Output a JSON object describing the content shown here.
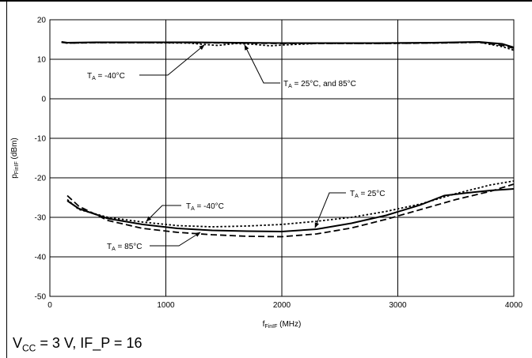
{
  "chart_data": {
    "type": "line",
    "xlabel": "f",
    "xlabel_sub": "FinIF",
    "xlabel_unit": " (MHz)",
    "ylabel": "p",
    "ylabel_sub": "FinIF",
    "ylabel_unit": " (dBm)",
    "xlim": [
      0,
      4000
    ],
    "ylim": [
      -50,
      20
    ],
    "grid": true,
    "x_ticks": [
      0,
      1000,
      2000,
      3000,
      4000
    ],
    "y_ticks": [
      20,
      10,
      0,
      -10,
      -20,
      -30,
      -40,
      -50
    ],
    "series": [
      {
        "condition": "-40°C",
        "group": "upper",
        "style": "dotted",
        "x": [
          100,
          150,
          400,
          800,
          1200,
          1350,
          1450,
          1600,
          1750,
          1900,
          2000,
          2300,
          2800,
          3300,
          3700,
          3900,
          4000
        ],
        "y": [
          14.3,
          14.1,
          14.2,
          14.2,
          14.1,
          13.7,
          13.5,
          14.0,
          13.8,
          13.4,
          13.6,
          14.0,
          14.0,
          14.1,
          14.3,
          13.2,
          12.3
        ]
      },
      {
        "condition": "25°C",
        "group": "upper",
        "style": "solid",
        "x": [
          100,
          150,
          400,
          800,
          1200,
          1600,
          2000,
          2300,
          2800,
          3300,
          3700,
          3900,
          4000
        ],
        "y": [
          14.4,
          14.2,
          14.3,
          14.3,
          14.3,
          14.2,
          14.1,
          14.1,
          14.1,
          14.2,
          14.4,
          13.9,
          13.0
        ]
      },
      {
        "condition": "85°C",
        "group": "upper",
        "style": "dashed",
        "x": [
          100,
          150,
          400,
          800,
          1200,
          1600,
          2000,
          2300,
          2800,
          3300,
          3700,
          3900,
          4000
        ],
        "y": [
          14.3,
          14.1,
          14.2,
          14.2,
          14.2,
          14.1,
          14.0,
          14.0,
          14.0,
          14.1,
          14.3,
          13.5,
          12.8
        ]
      },
      {
        "condition": "-40°C",
        "group": "lower",
        "style": "dotted",
        "x": [
          150,
          250,
          500,
          800,
          1100,
          1400,
          1700,
          2000,
          2300,
          2600,
          2900,
          3200,
          3500,
          3800,
          4000
        ],
        "y": [
          -25.5,
          -28.0,
          -30.0,
          -31.2,
          -32.1,
          -32.4,
          -32.2,
          -31.8,
          -31.0,
          -30.0,
          -28.5,
          -26.6,
          -24.0,
          -21.8,
          -20.8
        ]
      },
      {
        "condition": "25°C",
        "group": "lower",
        "style": "solid",
        "x": [
          150,
          250,
          500,
          800,
          1100,
          1400,
          1700,
          2000,
          2300,
          2600,
          2900,
          3200,
          3400,
          3600,
          3800,
          4000
        ],
        "y": [
          -25.8,
          -27.8,
          -30.3,
          -31.8,
          -32.8,
          -33.3,
          -33.5,
          -33.6,
          -33.0,
          -31.5,
          -29.5,
          -26.8,
          -24.5,
          -23.8,
          -23.2,
          -22.8
        ]
      },
      {
        "condition": "85°C",
        "group": "lower",
        "style": "dashed",
        "x": [
          150,
          250,
          500,
          800,
          1100,
          1400,
          1700,
          2000,
          2300,
          2600,
          2900,
          3200,
          3500,
          3800,
          4000
        ],
        "y": [
          -24.5,
          -27.2,
          -30.8,
          -32.8,
          -33.8,
          -34.4,
          -34.8,
          -34.9,
          -34.2,
          -32.7,
          -30.5,
          -28.0,
          -25.5,
          -23.4,
          -21.6
        ]
      }
    ],
    "annotations": [
      {
        "text_pre": "T",
        "text_sub": "A",
        "text_post": " = -40°C",
        "group": "upper"
      },
      {
        "text_pre": "T",
        "text_sub": "A",
        "text_post": " = 25°C,  and 85°C",
        "group": "upper"
      },
      {
        "text_pre": "T",
        "text_sub": "A",
        "text_post": " = -40°C",
        "group": "lower"
      },
      {
        "text_pre": "T",
        "text_sub": "A",
        "text_post": " = 25°C",
        "group": "lower"
      },
      {
        "text_pre": "T",
        "text_sub": "A",
        "text_post": " = 85°C",
        "group": "lower"
      }
    ]
  },
  "caption": {
    "v": "V",
    "v_sub": "CC",
    "rest": " = 3 V, IF_P = 16"
  }
}
